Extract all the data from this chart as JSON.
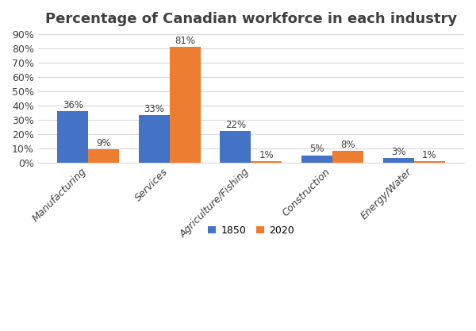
{
  "title": "Percentage of Canadian workforce in each industry",
  "categories": [
    "Manufacturing",
    "Services",
    "Agriculture/Fishing",
    "Construction",
    "Energy/Water"
  ],
  "values_1850": [
    36,
    33,
    22,
    5,
    3
  ],
  "values_2020": [
    9,
    81,
    1,
    8,
    1
  ],
  "color_1850": "#4472C4",
  "color_2020": "#ED7D31",
  "legend_labels": [
    "1850",
    "2020"
  ],
  "ylim": [
    0,
    90
  ],
  "yticks": [
    0,
    10,
    20,
    30,
    40,
    50,
    60,
    70,
    80,
    90
  ],
  "bar_width": 0.38,
  "title_fontsize": 13,
  "label_fontsize": 8.5,
  "tick_fontsize": 9,
  "background_color": "#ffffff",
  "grid_color": "#d9d9d9"
}
